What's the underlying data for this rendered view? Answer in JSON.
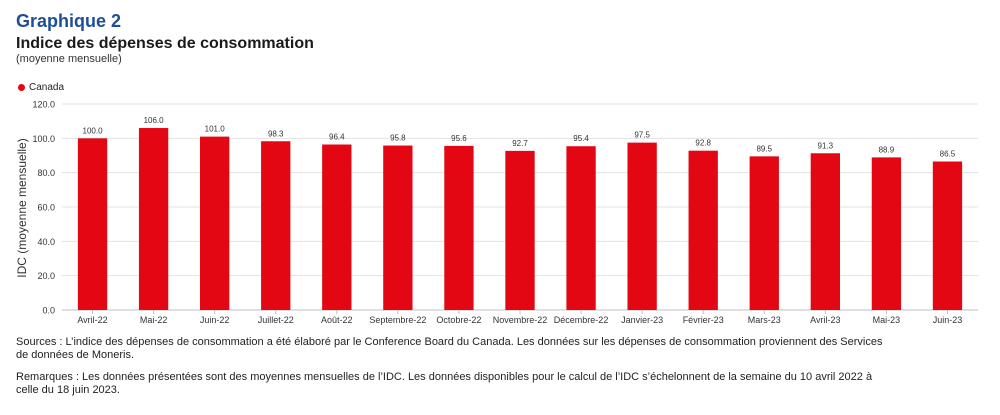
{
  "figure_label": "Graphique 2",
  "notes": {
    "sources": "Sources : L’indice des dépenses de consommation a été élaboré par le Conference Board du Canada. Les données sur les dépenses de consommation proviennent des Services de données de Moneris.",
    "remarks": "Remarques : Les données présentées sont des moyennes mensuelles de l’IDC. Les données disponibles pour le calcul de l’IDC s’échelonnent de la semaine du 10 avril 2022 à celle du 18 juin 2023."
  },
  "chart_data": {
    "type": "bar",
    "title": "Indice des dépenses de consommation",
    "subtitle": "(moyenne mensuelle)",
    "ylabel": "IDC (moyenne mensuelle)",
    "xlabel": "",
    "ylim": [
      0,
      120
    ],
    "yticks": [
      "0.0",
      "20.0",
      "40.0",
      "60.0",
      "80.0",
      "100.0",
      "120.0"
    ],
    "grid": true,
    "legend_position": "top-left",
    "categories": [
      "Avril-22",
      "Mai-22",
      "Juin-22",
      "Juillet-22",
      "Août-22",
      "Septembre-22",
      "Octobre-22",
      "Novembre-22",
      "Décembre-22",
      "Janvier-23",
      "Février-23",
      "Mars-23",
      "Avril-23",
      "Mai-23",
      "Juin-23"
    ],
    "series": [
      {
        "name": "Canada",
        "color": "#e30613",
        "values": [
          100.0,
          106.0,
          101.0,
          98.3,
          96.4,
          95.8,
          95.6,
          92.7,
          95.4,
          97.5,
          92.8,
          89.5,
          91.3,
          88.9,
          86.5
        ],
        "labels": [
          "100.0",
          "106.0",
          "101.0",
          "98.3",
          "96.4",
          "95.8",
          "95.6",
          "92.7",
          "95.4",
          "97.5",
          "92.8",
          "89.5",
          "91.3",
          "88.9",
          "86.5"
        ]
      }
    ]
  }
}
